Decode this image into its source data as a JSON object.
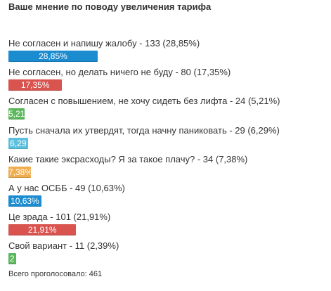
{
  "chart_data": {
    "type": "bar",
    "orientation": "horizontal",
    "title": "Ваше мнение по поводу увеличения тарифа",
    "categories": [
      "Не согласен и напишу жалобу - 133 (28,85%)",
      "Не согласен, но делать ничего не буду - 80 (17,35%)",
      "Согласен с повышением, не хочу сидеть без лифта - 24 (5,21%)",
      "Пусть сначала их утвердят, тогда начну паниковать - 29 (6,29%)",
      "Какие такие эксрасходы? Я за такое плачу? - 34 (7,38%)",
      "А у нас ОСББ - 49 (10,63%)",
      "Це зрада - 101 (21,91%)",
      "Свой вариант - 11 (2,39%)"
    ],
    "values": [
      28.85,
      17.35,
      5.21,
      6.29,
      7.38,
      10.63,
      21.91,
      2.39
    ],
    "value_labels": [
      "28,85%",
      "17,35%",
      "5,21",
      "6,29",
      "7,38%",
      "10,63%",
      "21,91%",
      "2"
    ],
    "colors": [
      "#1a8ccf",
      "#d9534f",
      "#5cb85c",
      "#5bc0de",
      "#f0ad4e",
      "#1a8ccf",
      "#d9534f",
      "#5cb85c"
    ],
    "footer": "Всего проголосовало: 461"
  }
}
